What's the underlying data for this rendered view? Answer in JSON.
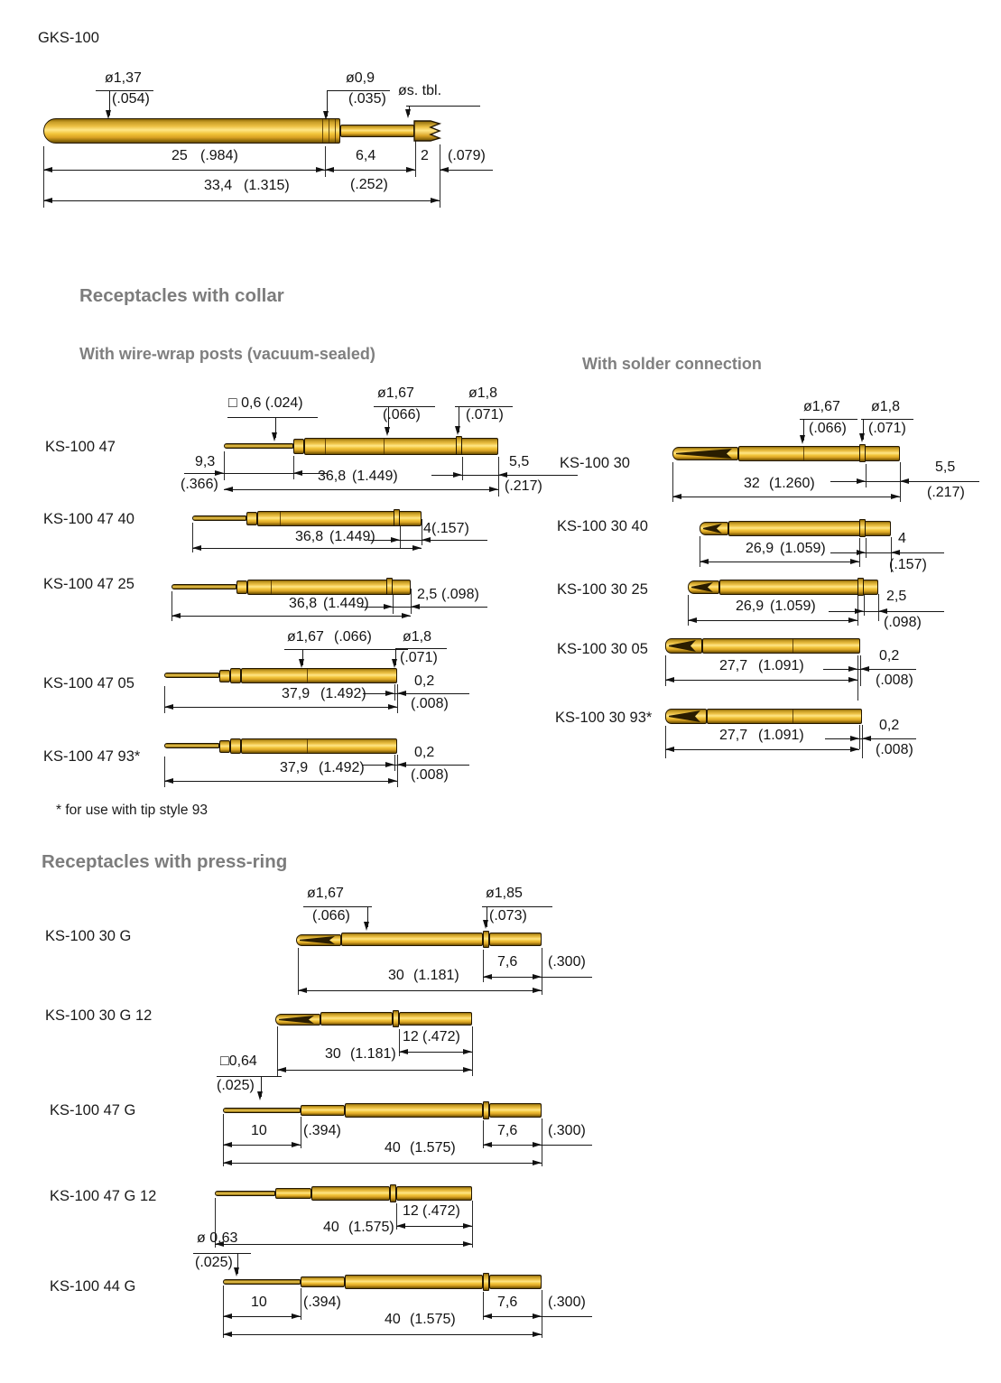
{
  "title": "GKS-100",
  "footnote": "* for use with tip style 93",
  "headings": {
    "collar": "Receptacles with collar",
    "wirewrap": "With wire-wrap posts (vacuum-sealed)",
    "solder": "With solder connection",
    "pressring": "Receptacles with press-ring"
  },
  "colors": {
    "gold": "#eab42a",
    "heading_gray": "#7d7d7d",
    "line": "#161616"
  },
  "top": {
    "dia_body": "ø1,37",
    "dia_body_in": "(.054)",
    "dia_plunger": "ø0,9",
    "dia_plunger_in": "(.035)",
    "dia_tip": "øs. tbl.",
    "len_body": "25",
    "len_body_in": "(.984)",
    "len_plunger": "6,4",
    "len_plunger_in": "(.252)",
    "len_tip": "2",
    "len_tip_in": "(.079)",
    "len_total": "33,4",
    "len_total_in": "(1.315)"
  },
  "figures": [
    {
      "id": "ks-100-47",
      "label": "KS-100 47",
      "texts": {
        "sq": "□ 0,6 (.024)",
        "d167": "ø1,67",
        "d167i": "(.066)",
        "d18": "ø1,8",
        "d18i": "(.071)",
        "a": "9,3",
        "ai": "(.366)",
        "b": "36,8",
        "bi": "(1.449)",
        "c": "5,5",
        "ci": "(.217)"
      }
    },
    {
      "id": "ks-100-47-40",
      "label": "KS-100 47 40",
      "texts": {
        "b": "36,8",
        "bi": "(1.449)",
        "c": "4",
        "ci": "(.157)"
      }
    },
    {
      "id": "ks-100-47-25",
      "label": "KS-100 47 25",
      "texts": {
        "b": "36,8",
        "bi": "(1.449)",
        "c": "2,5",
        "ci": "(.098)"
      }
    },
    {
      "id": "ks-100-47-05",
      "label": "KS-100 47 05",
      "texts": {
        "d167": "ø1,67",
        "d167i": "(.066)",
        "d18": "ø1,8",
        "d18i": "(.071)",
        "b": "37,9",
        "bi": "(1.492)",
        "c": "0,2",
        "ci": "(.008)"
      }
    },
    {
      "id": "ks-100-47-93",
      "label": "KS-100 47 93*",
      "texts": {
        "b": "37,9",
        "bi": "(1.492)",
        "c": "0,2",
        "ci": "(.008)"
      }
    },
    {
      "id": "ks-100-30",
      "label": "KS-100 30",
      "texts": {
        "d167": "ø1,67",
        "d167i": "(.066)",
        "d18": "ø1,8",
        "d18i": "(.071)",
        "b": "32",
        "bi": "(1.260)",
        "c": "5,5",
        "ci": "(.217)"
      }
    },
    {
      "id": "ks-100-30-40",
      "label": "KS-100 30 40",
      "texts": {
        "b": "26,9",
        "bi": "(1.059)",
        "c": "4",
        "ci": "(.157)"
      }
    },
    {
      "id": "ks-100-30-25",
      "label": "KS-100 30 25",
      "texts": {
        "b": "26,9",
        "bi": "(1.059)",
        "c": "2,5",
        "ci": "(.098)"
      }
    },
    {
      "id": "ks-100-30-05",
      "label": "KS-100 30 05",
      "texts": {
        "b": "27,7",
        "bi": "(1.091)",
        "c": "0,2",
        "ci": "(.008)"
      }
    },
    {
      "id": "ks-100-30-93",
      "label": "KS-100 30 93*",
      "texts": {
        "b": "27,7",
        "bi": "(1.091)",
        "c": "0,2",
        "ci": "(.008)"
      }
    },
    {
      "id": "ks-100-30-g",
      "label": "KS-100 30 G",
      "texts": {
        "d167": "ø1,67",
        "d167i": "(.066)",
        "d185": "ø1,85",
        "d185i": "(.073)",
        "b": "30",
        "bi": "(1.181)",
        "c": "7,6",
        "ci": "(.300)"
      }
    },
    {
      "id": "ks-100-30-g-12",
      "label": "KS-100 30 G 12",
      "texts": {
        "b": "30",
        "bi": "(1.181)",
        "c": "12",
        "ci": "(.472)"
      }
    },
    {
      "id": "ks-100-47-g",
      "label": "KS-100 47 G",
      "texts": {
        "sq": "□0,64",
        "sqi": "(.025)",
        "a": "10",
        "ai": "(.394)",
        "b": "40",
        "bi": "(1.575)",
        "c": "7,6",
        "ci": "(.300)"
      }
    },
    {
      "id": "ks-100-47-g-12",
      "label": "KS-100 47 G 12",
      "texts": {
        "b": "40",
        "bi": "(1.575)",
        "c": "12",
        "ci": "(.472)"
      }
    },
    {
      "id": "ks-100-44-g",
      "label": "KS-100 44 G",
      "texts": {
        "sq": "ø 0,63",
        "sqi": "(.025)",
        "a": "10",
        "ai": "(.394)",
        "b": "40",
        "bi": "(1.575)",
        "c": "7,6",
        "ci": "(.300)"
      }
    }
  ]
}
